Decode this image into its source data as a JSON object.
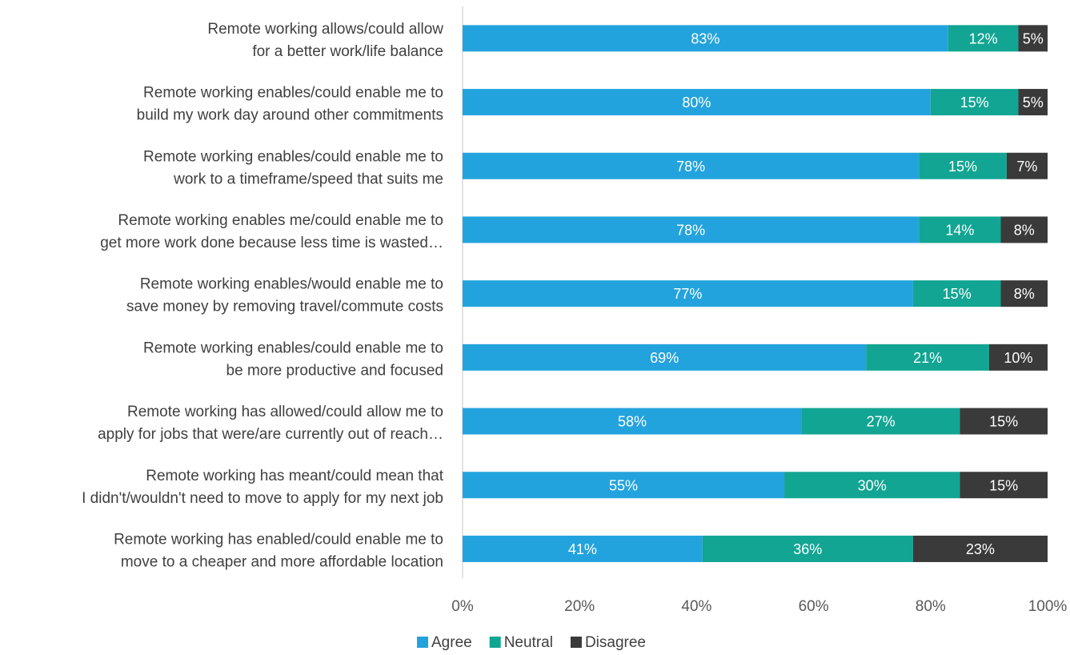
{
  "chart_data": {
    "type": "bar",
    "orientation": "horizontal",
    "stacked": "percent",
    "categories": [
      [
        "Remote working allows/could allow",
        "for a better work/life balance"
      ],
      [
        "Remote working enables/could enable me to",
        "build my work day around other commitments"
      ],
      [
        "Remote working enables/could enable me to",
        "work to a timeframe/speed that suits me"
      ],
      [
        "Remote working enables me/could enable me to",
        "get more work done because less time is wasted…"
      ],
      [
        "Remote working enables/would enable me to",
        "save money by removing travel/commute costs"
      ],
      [
        "Remote working enables/could enable me to",
        "be more productive and focused"
      ],
      [
        "Remote working has allowed/could allow me to",
        "apply for jobs that were/are currently out of reach…"
      ],
      [
        "Remote working has meant/could mean that",
        "I didn't/wouldn't need to move to apply for my next job"
      ],
      [
        "Remote working has enabled/could enable me to",
        "move to a cheaper and more affordable location"
      ]
    ],
    "series": [
      {
        "name": "Agree",
        "color": "#23A3DD",
        "values": [
          83,
          80,
          78,
          78,
          77,
          69,
          58,
          55,
          41
        ]
      },
      {
        "name": "Neutral",
        "color": "#12A593",
        "values": [
          12,
          15,
          15,
          14,
          15,
          21,
          27,
          30,
          36
        ]
      },
      {
        "name": "Disagree",
        "color": "#3A3A3A",
        "values": [
          5,
          5,
          7,
          8,
          8,
          10,
          15,
          15,
          23
        ]
      }
    ],
    "data_labels": [
      [
        "83%",
        "80%",
        "78%",
        "78%",
        "77%",
        "69%",
        "58%",
        "55%",
        "41%"
      ],
      [
        "12%",
        "15%",
        "15%",
        "14%",
        "15%",
        "21%",
        "27%",
        "30%",
        "36%"
      ],
      [
        "5%",
        "5%",
        "7%",
        "8%",
        "8%",
        "10%",
        "15%",
        "15%",
        "23%"
      ]
    ],
    "x_ticks": [
      "0%",
      "20%",
      "40%",
      "60%",
      "80%",
      "100%"
    ],
    "xlim": [
      0,
      100
    ],
    "title": "",
    "xlabel": "",
    "ylabel": "",
    "grid": false,
    "legend_position": "bottom"
  }
}
